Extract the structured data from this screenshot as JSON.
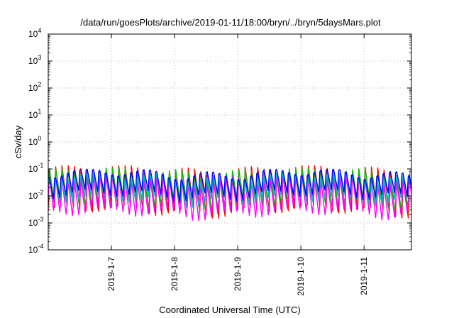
{
  "chart_data": {
    "type": "line",
    "title": "/data/run/goesPlots/archive/2019-01-11/18:00/bryn/../bryn/5daysMars.plot",
    "xlabel": "Coordinated Universal Time (UTC)",
    "ylabel": "cSv/day",
    "yscale": "log",
    "ylim": [
      0.0001,
      10000
    ],
    "y_ticks": [
      {
        "base": "10",
        "exp": "-4"
      },
      {
        "base": "10",
        "exp": "-3"
      },
      {
        "base": "10",
        "exp": "-2"
      },
      {
        "base": "10",
        "exp": "-1"
      },
      {
        "base": "10",
        "exp": "0"
      },
      {
        "base": "10",
        "exp": "1"
      },
      {
        "base": "10",
        "exp": "2"
      },
      {
        "base": "10",
        "exp": "3"
      },
      {
        "base": "10",
        "exp": "4"
      }
    ],
    "x_ticks": [
      "2019-1-7",
      "2019-1-8",
      "2019-1-9",
      "2019-1-10",
      "2019-1-11"
    ],
    "xlim": [
      "2019-01-06T00:00",
      "2019-01-11T18:00"
    ],
    "grid": true,
    "series": [
      {
        "color": "#ff0000",
        "pattern_peak": 0.1,
        "pattern_trough": 0.003
      },
      {
        "color": "#00c000",
        "pattern_peak": 0.09,
        "pattern_trough": 0.004
      },
      {
        "color": "#ff00ff",
        "pattern_peak": 0.06,
        "pattern_trough": 0.0015
      },
      {
        "color": "#00c0c0",
        "pattern_peak": 0.07,
        "pattern_trough": 0.006
      },
      {
        "color": "#0000ff",
        "pattern_peak": 0.1,
        "pattern_trough": 0.01
      }
    ],
    "cycles_per_day": 10
  }
}
